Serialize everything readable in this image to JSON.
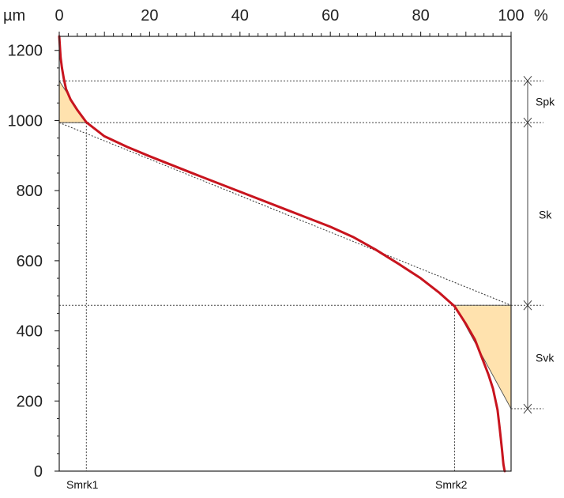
{
  "chart_data": {
    "type": "line",
    "title": "",
    "xlabel": "",
    "ylabel": "",
    "x_unit": "%",
    "y_unit": "µm",
    "xlim": [
      0,
      100
    ],
    "ylim": [
      0,
      1240
    ],
    "x_ticks": [
      0,
      20,
      40,
      60,
      80,
      100
    ],
    "y_ticks": [
      0,
      200,
      400,
      600,
      800,
      1000,
      1200
    ],
    "x_tick_labels": [
      "0",
      "20",
      "40",
      "60",
      "80",
      "100"
    ],
    "y_tick_labels": [
      "0",
      "200",
      "400",
      "600",
      "800",
      "1000",
      "1200"
    ],
    "curve": {
      "color": "#c8141e",
      "x": [
        0,
        0.3,
        0.6,
        1.0,
        1.5,
        2.5,
        4,
        6,
        10,
        15,
        20,
        30,
        40,
        50,
        60,
        65,
        70,
        75,
        80,
        84,
        87.5,
        90,
        92,
        93.5,
        95,
        96,
        97,
        97.5,
        98,
        98.3,
        98.5,
        98.6
      ],
      "y": [
        1240,
        1180,
        1150,
        1120,
        1090,
        1060,
        1030,
        995,
        955,
        925,
        898,
        847,
        797,
        747,
        697,
        668,
        632,
        592,
        550,
        510,
        470,
        420,
        375,
        325,
        275,
        235,
        175,
        120,
        60,
        20,
        5,
        0
      ]
    },
    "threshold_lines": {
      "spk_upper": 1113,
      "sk_upper": 994,
      "sk_lower": 473,
      "svk_lower": 178
    },
    "equivalent_line": {
      "x": [
        0,
        100
      ],
      "y": [
        994,
        473
      ]
    },
    "smr_lines": {
      "smrk1": 6,
      "smrk2": 87.5
    },
    "shaded_areas": {
      "color": "#ffe2ae",
      "upper_triangle": {
        "x": [
          0,
          0,
          6
        ],
        "y": [
          1113,
          994,
          994
        ]
      },
      "lower_triangle": {
        "x": [
          87.5,
          100,
          100
        ],
        "y": [
          473,
          473,
          178
        ]
      }
    },
    "labels": {
      "spk": "Spk",
      "sk": "Sk",
      "svk": "Svk",
      "smrk1": "Smrk1",
      "smrk2": "Smrk2"
    }
  }
}
